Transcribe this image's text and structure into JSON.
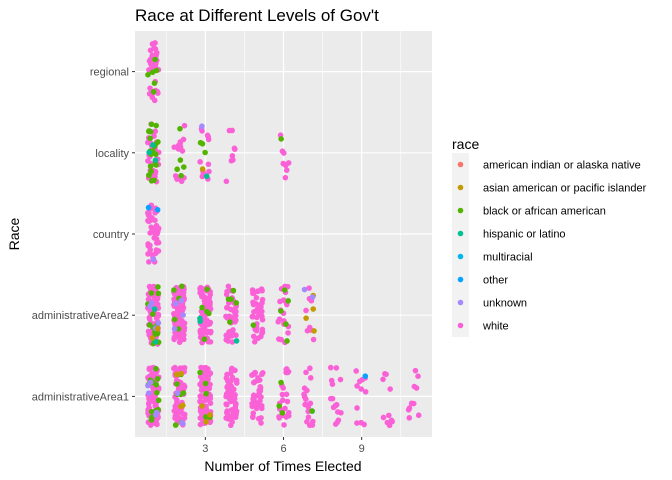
{
  "chart_data": {
    "type": "scatter",
    "title": "Race at Different Levels of Gov't",
    "xlabel": "Number of Times Elected",
    "ylabel": "Race",
    "x_ticks": [
      3,
      6,
      9
    ],
    "xlim": [
      0.3,
      11.7
    ],
    "y_categories": [
      "administrativeArea1",
      "administrativeArea2",
      "country",
      "locality",
      "regional"
    ],
    "jitter": true,
    "grid": true,
    "legend": {
      "title": "race",
      "position": "right",
      "entries": [
        {
          "name": "american indian or alaska native",
          "color": "#F8766D"
        },
        {
          "name": "asian american or pacific islander",
          "color": "#C49A00"
        },
        {
          "name": "black or african american",
          "color": "#53B400"
        },
        {
          "name": "hispanic or latino",
          "color": "#00C094"
        },
        {
          "name": "multiracial",
          "color": "#00B6EB"
        },
        {
          "name": "other",
          "color": "#06A4FF"
        },
        {
          "name": "unknown",
          "color": "#A58AFF"
        },
        {
          "name": "white",
          "color": "#FB61D7"
        }
      ]
    },
    "series": [
      {
        "category": "regional",
        "x": 1,
        "count": 40,
        "mix": {
          "white": 0.85,
          "black or african american": 0.15
        }
      },
      {
        "category": "locality",
        "x": 1,
        "count": 60,
        "mix": {
          "white": 0.6,
          "black or african american": 0.35,
          "hispanic or latino": 0.05
        }
      },
      {
        "category": "locality",
        "x": 2,
        "count": 18,
        "mix": {
          "white": 0.75,
          "black or african american": 0.25
        }
      },
      {
        "category": "locality",
        "x": 3,
        "count": 18,
        "mix": {
          "white": 0.7,
          "black or african american": 0.15,
          "hispanic or latino": 0.05,
          "unknown": 0.05,
          "asian american or pacific islander": 0.05
        }
      },
      {
        "category": "locality",
        "x": 4,
        "count": 8,
        "mix": {
          "white": 1
        }
      },
      {
        "category": "locality",
        "x": 6,
        "count": 9,
        "mix": {
          "white": 0.9,
          "black or african american": 0.1
        }
      },
      {
        "category": "country",
        "x": 1,
        "count": 45,
        "mix": {
          "white": 0.93,
          "other": 0.04,
          "unknown": 0.03
        }
      },
      {
        "category": "administrativeArea2",
        "x": 1,
        "count": 110,
        "mix": {
          "white": 0.8,
          "black or african american": 0.12,
          "unknown": 0.04,
          "hispanic or latino": 0.02,
          "asian american or pacific islander": 0.02
        }
      },
      {
        "category": "administrativeArea2",
        "x": 2,
        "count": 90,
        "mix": {
          "white": 0.9,
          "black or african american": 0.06,
          "unknown": 0.04
        }
      },
      {
        "category": "administrativeArea2",
        "x": 3,
        "count": 90,
        "mix": {
          "white": 0.92,
          "black or african american": 0.06,
          "hispanic or latino": 0.02
        }
      },
      {
        "category": "administrativeArea2",
        "x": 4,
        "count": 50,
        "mix": {
          "white": 0.88,
          "black or african american": 0.1,
          "hispanic or latino": 0.02
        }
      },
      {
        "category": "administrativeArea2",
        "x": 5,
        "count": 40,
        "mix": {
          "white": 0.97,
          "black or african american": 0.03
        }
      },
      {
        "category": "administrativeArea2",
        "x": 6,
        "count": 25,
        "mix": {
          "white": 0.8,
          "black or african american": 0.2
        }
      },
      {
        "category": "administrativeArea2",
        "x": 7,
        "count": 14,
        "mix": {
          "white": 0.55,
          "asian american or pacific islander": 0.3,
          "unknown": 0.15
        }
      },
      {
        "category": "administrativeArea1",
        "x": 1,
        "count": 100,
        "mix": {
          "white": 0.8,
          "black or african american": 0.15,
          "unknown": 0.05
        }
      },
      {
        "category": "administrativeArea1",
        "x": 2,
        "count": 90,
        "mix": {
          "white": 0.85,
          "black or african american": 0.08,
          "asian american or pacific islander": 0.04,
          "unknown": 0.03
        }
      },
      {
        "category": "administrativeArea1",
        "x": 3,
        "count": 100,
        "mix": {
          "white": 0.92,
          "black or african american": 0.05,
          "asian american or pacific islander": 0.03
        }
      },
      {
        "category": "administrativeArea1",
        "x": 4,
        "count": 60,
        "mix": {
          "white": 1
        }
      },
      {
        "category": "administrativeArea1",
        "x": 5,
        "count": 40,
        "mix": {
          "white": 1
        }
      },
      {
        "category": "administrativeArea1",
        "x": 6,
        "count": 25,
        "mix": {
          "white": 0.9,
          "black or african american": 0.1
        }
      },
      {
        "category": "administrativeArea1",
        "x": 7,
        "count": 20,
        "mix": {
          "white": 0.9,
          "multiracial": 0.05,
          "black or african american": 0.05
        }
      },
      {
        "category": "administrativeArea1",
        "x": 8,
        "count": 15,
        "mix": {
          "white": 1
        }
      },
      {
        "category": "administrativeArea1",
        "x": 9,
        "count": 12,
        "mix": {
          "white": 0.9,
          "other": 0.1
        }
      },
      {
        "category": "administrativeArea1",
        "x": 10,
        "count": 10,
        "mix": {
          "white": 1
        }
      },
      {
        "category": "administrativeArea1",
        "x": 11,
        "count": 10,
        "mix": {
          "white": 1
        }
      }
    ]
  }
}
